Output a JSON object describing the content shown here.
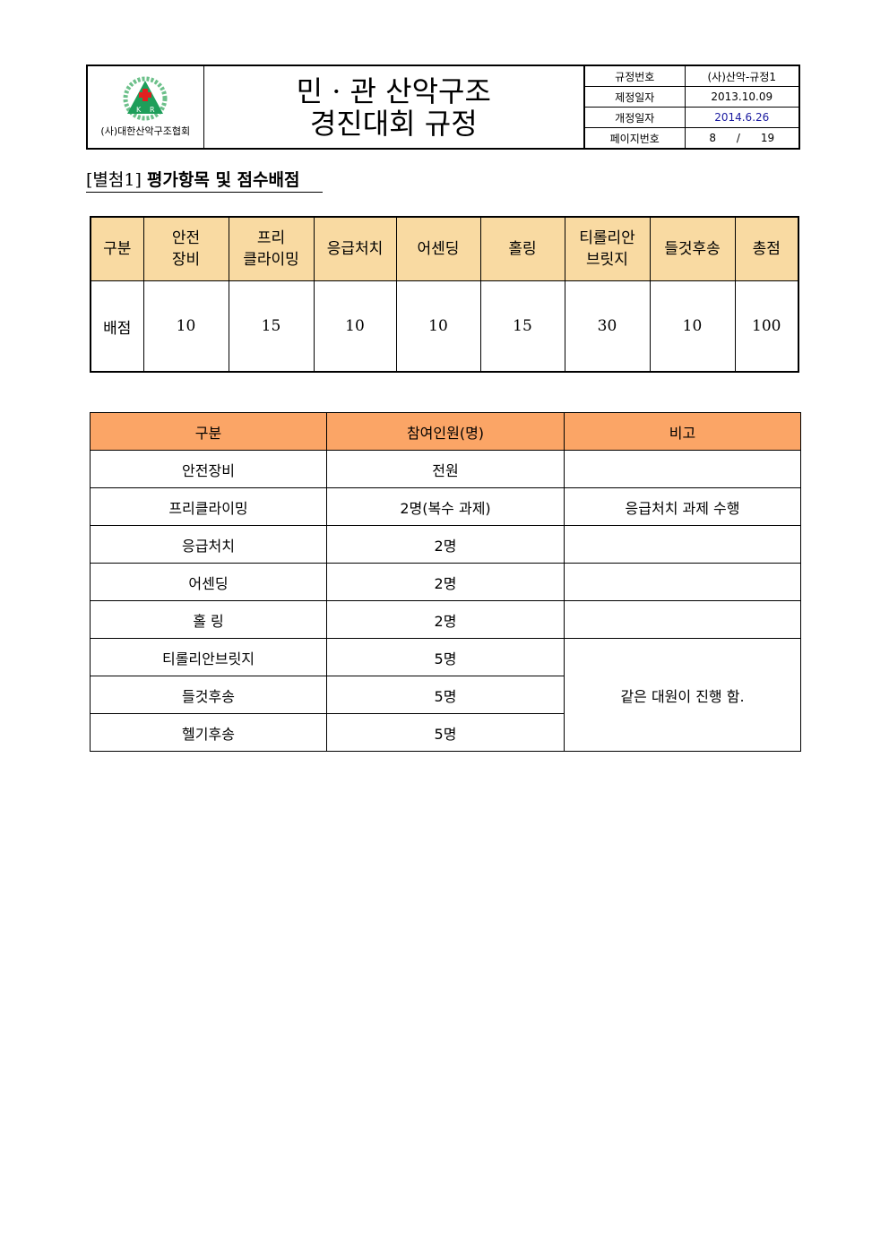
{
  "header": {
    "org_name": "(사)대한산악구조협회",
    "logo_letters": [
      "K",
      "R"
    ],
    "title_line1": "민 · 관 산악구조",
    "title_line2": "경진대회 규정",
    "meta": [
      {
        "label": "규정번호",
        "value": "(사)산악-규정1"
      },
      {
        "label": "제정일자",
        "value": "2013.10.09"
      },
      {
        "label": "개정일자",
        "value": "2014.6.26"
      },
      {
        "label": "페이지번호",
        "value": "8      /      19"
      }
    ],
    "revised_color": "#1a1aa0"
  },
  "section": {
    "prefix": "[별첨1]",
    "title": "평가항목 및 점수배점"
  },
  "score_table": {
    "row_header": "구분",
    "columns": [
      "안전\n장비",
      "프리\n클라이밍",
      "응급처치",
      "어센딩",
      "홀링",
      "티롤리안\n브릿지",
      "들것후송",
      "총점"
    ],
    "row_label": "배점",
    "values": [
      "10",
      "15",
      "10",
      "10",
      "15",
      "30",
      "10",
      "100"
    ],
    "header_color": "#F9DAA2"
  },
  "participants_table": {
    "headers": [
      "구분",
      "참여인원(명)",
      "비고"
    ],
    "rows": [
      {
        "item": "안전장비",
        "count": "전원",
        "note": ""
      },
      {
        "item": "프리클라이밍",
        "count": "2명(복수 과제)",
        "note": "응급처치 과제 수행"
      },
      {
        "item": "응급처치",
        "count": "2명",
        "note": ""
      },
      {
        "item": "어센딩",
        "count": "2명",
        "note": ""
      },
      {
        "item": "홀 링",
        "count": "2명",
        "note": ""
      },
      {
        "item": "티롤리안브릿지",
        "count": "5명",
        "note": "같은 대원이 진행 함."
      },
      {
        "item": "들것후송",
        "count": "5명"
      },
      {
        "item": "헬기후송",
        "count": "5명"
      }
    ],
    "header_color": "#FBA566"
  }
}
